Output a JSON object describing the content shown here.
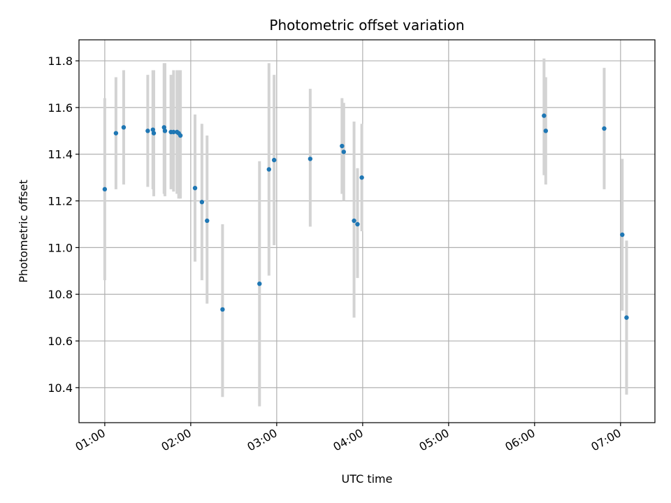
{
  "chart_data": {
    "type": "scatter",
    "title": "Photometric offset variation",
    "xlabel": "UTC time",
    "ylabel": "Photometric offset",
    "x_unit": "UTC hours",
    "xlim": [
      0.7,
      7.4
    ],
    "ylim": [
      10.25,
      11.89
    ],
    "grid": true,
    "x_ticks": [
      {
        "value": 1,
        "label": "01:00"
      },
      {
        "value": 2,
        "label": "02:00"
      },
      {
        "value": 3,
        "label": "03:00"
      },
      {
        "value": 4,
        "label": "04:00"
      },
      {
        "value": 5,
        "label": "05:00"
      },
      {
        "value": 6,
        "label": "06:00"
      },
      {
        "value": 7,
        "label": "07:00"
      }
    ],
    "y_ticks": [
      {
        "value": 10.4,
        "label": "10.4"
      },
      {
        "value": 10.6,
        "label": "10.6"
      },
      {
        "value": 10.8,
        "label": "10.8"
      },
      {
        "value": 11.0,
        "label": "11.0"
      },
      {
        "value": 11.2,
        "label": "11.2"
      },
      {
        "value": 11.4,
        "label": "11.4"
      },
      {
        "value": 11.6,
        "label": "11.6"
      },
      {
        "value": 11.8,
        "label": "11.8"
      }
    ],
    "colors": {
      "point": "#1f77b4",
      "errorbar": "#d3d3d3",
      "grid": "#b0b0b0"
    },
    "points": [
      {
        "x": 1.0,
        "y": 11.25,
        "lo": 10.86,
        "hi": 11.64
      },
      {
        "x": 1.13,
        "y": 11.49,
        "lo": 11.25,
        "hi": 11.73
      },
      {
        "x": 1.22,
        "y": 11.515,
        "lo": 11.27,
        "hi": 11.76
      },
      {
        "x": 1.5,
        "y": 11.5,
        "lo": 11.26,
        "hi": 11.74
      },
      {
        "x": 1.56,
        "y": 11.505,
        "lo": 11.25,
        "hi": 11.76
      },
      {
        "x": 1.57,
        "y": 11.49,
        "lo": 11.22,
        "hi": 11.76
      },
      {
        "x": 1.69,
        "y": 11.515,
        "lo": 11.23,
        "hi": 11.79
      },
      {
        "x": 1.7,
        "y": 11.5,
        "lo": 11.22,
        "hi": 11.79
      },
      {
        "x": 1.77,
        "y": 11.495,
        "lo": 11.25,
        "hi": 11.74
      },
      {
        "x": 1.8,
        "y": 11.495,
        "lo": 11.24,
        "hi": 11.76
      },
      {
        "x": 1.84,
        "y": 11.495,
        "lo": 11.23,
        "hi": 11.76
      },
      {
        "x": 1.86,
        "y": 11.49,
        "lo": 11.21,
        "hi": 11.76
      },
      {
        "x": 1.88,
        "y": 11.48,
        "lo": 11.21,
        "hi": 11.76
      },
      {
        "x": 2.05,
        "y": 11.255,
        "lo": 10.94,
        "hi": 11.57
      },
      {
        "x": 2.13,
        "y": 11.195,
        "lo": 10.86,
        "hi": 11.53
      },
      {
        "x": 2.19,
        "y": 11.115,
        "lo": 10.76,
        "hi": 11.48
      },
      {
        "x": 2.37,
        "y": 10.735,
        "lo": 10.36,
        "hi": 11.1
      },
      {
        "x": 2.8,
        "y": 10.845,
        "lo": 10.32,
        "hi": 11.37
      },
      {
        "x": 2.91,
        "y": 11.335,
        "lo": 10.88,
        "hi": 11.79
      },
      {
        "x": 2.97,
        "y": 11.375,
        "lo": 11.01,
        "hi": 11.74
      },
      {
        "x": 3.39,
        "y": 11.38,
        "lo": 11.09,
        "hi": 11.68
      },
      {
        "x": 3.76,
        "y": 11.435,
        "lo": 11.23,
        "hi": 11.64
      },
      {
        "x": 3.78,
        "y": 11.41,
        "lo": 11.2,
        "hi": 11.62
      },
      {
        "x": 3.9,
        "y": 11.115,
        "lo": 10.7,
        "hi": 11.54
      },
      {
        "x": 3.94,
        "y": 11.1,
        "lo": 10.87,
        "hi": 11.34
      },
      {
        "x": 3.99,
        "y": 11.3,
        "lo": 11.07,
        "hi": 11.53
      },
      {
        "x": 6.11,
        "y": 11.565,
        "lo": 11.31,
        "hi": 11.81
      },
      {
        "x": 6.13,
        "y": 11.5,
        "lo": 11.27,
        "hi": 11.73
      },
      {
        "x": 6.81,
        "y": 11.51,
        "lo": 11.25,
        "hi": 11.77
      },
      {
        "x": 7.02,
        "y": 11.055,
        "lo": 10.73,
        "hi": 11.38
      },
      {
        "x": 7.07,
        "y": 10.7,
        "lo": 10.37,
        "hi": 11.03
      }
    ]
  }
}
